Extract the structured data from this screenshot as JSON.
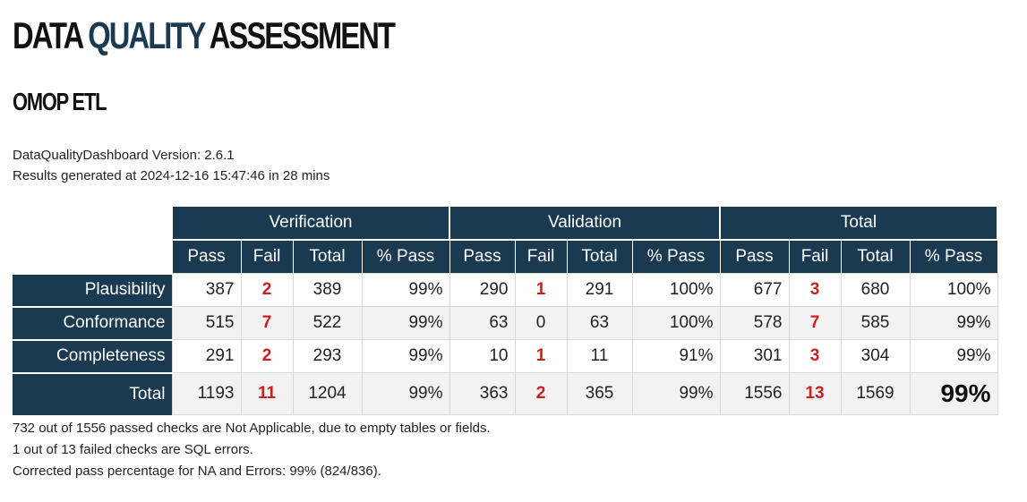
{
  "header": {
    "title_part1": "DATA ",
    "title_part2": "QUALITY",
    "title_part3": " ASSESSMENT",
    "subtitle": "OMOP ETL"
  },
  "meta": {
    "version_line": "DataQualityDashboard Version: 2.6.1",
    "generated_line": "Results generated at 2024-12-16 15:47:46 in 28 mins"
  },
  "table": {
    "groups": [
      "Verification",
      "Validation",
      "Total"
    ],
    "columns": [
      "Pass",
      "Fail",
      "Total",
      "% Pass"
    ],
    "rows": [
      {
        "label": "Plausibility",
        "values": [
          "387",
          "2",
          "389",
          "99%",
          "290",
          "1",
          "291",
          "100%",
          "677",
          "3",
          "680",
          "100%"
        ]
      },
      {
        "label": "Conformance",
        "values": [
          "515",
          "7",
          "522",
          "99%",
          "63",
          "0",
          "63",
          "100%",
          "578",
          "7",
          "585",
          "99%"
        ]
      },
      {
        "label": "Completeness",
        "values": [
          "291",
          "2",
          "293",
          "99%",
          "10",
          "1",
          "11",
          "91%",
          "301",
          "3",
          "304",
          "99%"
        ]
      },
      {
        "label": "Total",
        "values": [
          "1193",
          "11",
          "1204",
          "99%",
          "363",
          "2",
          "365",
          "99%",
          "1556",
          "13",
          "1569",
          "99%"
        ]
      }
    ]
  },
  "notes": {
    "na_line": "732 out of 1556 passed checks are Not Applicable, due to empty tables or fields.",
    "sql_line": "1 out of 13 failed checks are SQL errors.",
    "corrected_line": "Corrected pass percentage for NA and Errors: 99% (824/836)."
  },
  "colors": {
    "header_bg": "#1a3a52",
    "fail_red": "#cc1f1f"
  }
}
